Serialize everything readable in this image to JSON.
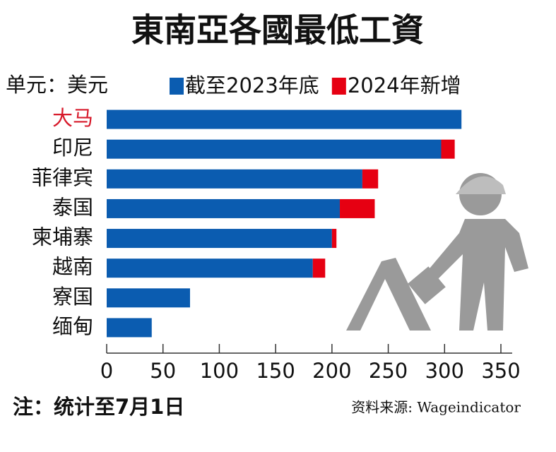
{
  "chart_data": {
    "type": "stacked_barh",
    "title": "東南亞各國最低工資",
    "unit_label": "单元：美元",
    "note": "注：统计至7月1日",
    "source": "资料来源: Wageindicator",
    "categories": [
      "大马",
      "印尼",
      "菲律宾",
      "泰国",
      "柬埔寨",
      "越南",
      "寮国",
      "缅甸"
    ],
    "label_colors": [
      "#d7192a",
      "#111111",
      "#111111",
      "#111111",
      "#111111",
      "#111111",
      "#111111",
      "#111111"
    ],
    "series": [
      {
        "name": "截至2023年底",
        "color": "#0b5cb0",
        "values": [
          315,
          297,
          227,
          207,
          200,
          183,
          74,
          40
        ]
      },
      {
        "name": "2024年新增",
        "color": "#e60012",
        "values": [
          0,
          12,
          14,
          31,
          4,
          11,
          0,
          0
        ]
      }
    ],
    "xlim": [
      0,
      360
    ],
    "xticks": [
      0,
      50,
      100,
      150,
      200,
      250,
      300,
      350
    ]
  }
}
